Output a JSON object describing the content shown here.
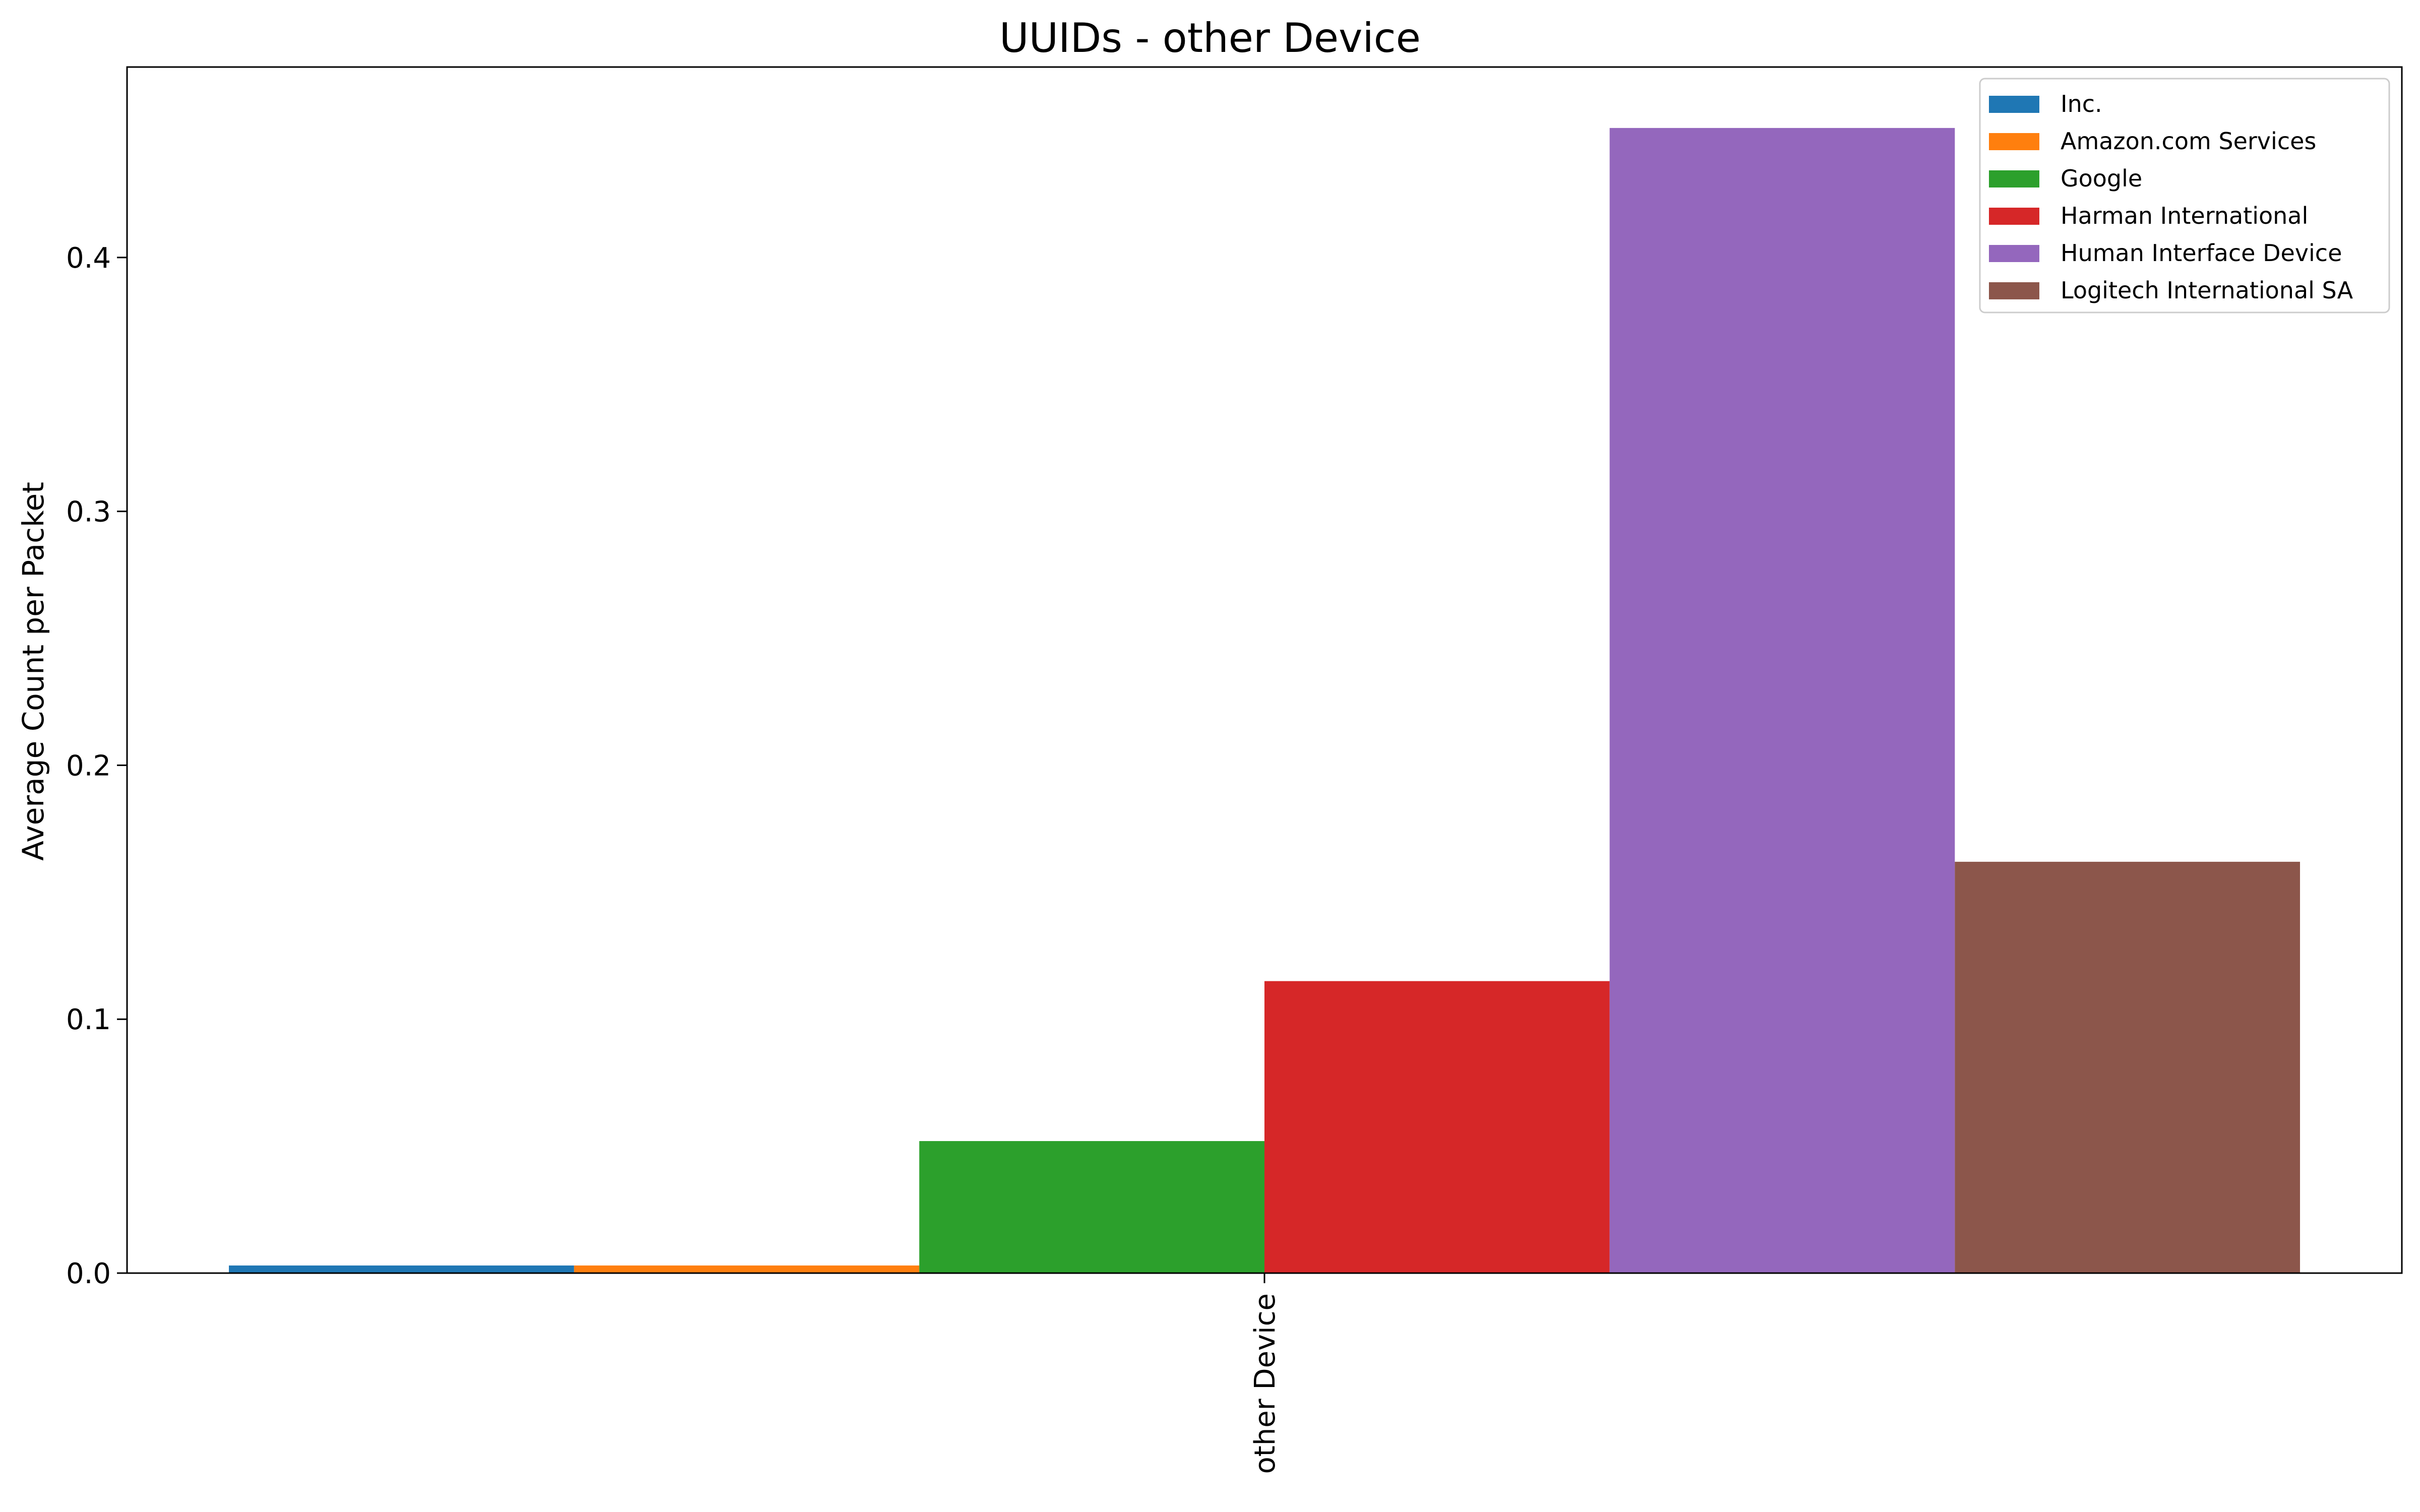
{
  "chart_data": {
    "type": "bar",
    "title": "UUIDs - other Device",
    "xlabel": "",
    "ylabel": "Average Count per Packet",
    "categories": [
      "other Device"
    ],
    "ylim": [
      0,
      0.475
    ],
    "yticks": [
      "0.0",
      "0.1",
      "0.2",
      "0.3",
      "0.4"
    ],
    "ytick_values": [
      0,
      0.1,
      0.2,
      0.3,
      0.4
    ],
    "grid": false,
    "legend_position": "top-right",
    "series": [
      {
        "name": " Inc.",
        "color": "#1f77b4",
        "values": [
          0.003
        ]
      },
      {
        "name": "Amazon.com Services",
        "color": "#ff7f0e",
        "values": [
          0.003
        ]
      },
      {
        "name": "Google",
        "color": "#2ca02c",
        "values": [
          0.052
        ]
      },
      {
        "name": "Harman International",
        "color": "#d62728",
        "values": [
          0.115
        ]
      },
      {
        "name": "Human Interface Device",
        "color": "#9467bd",
        "values": [
          0.451
        ]
      },
      {
        "name": "Logitech International SA",
        "color": "#8c564b",
        "values": [
          0.162
        ]
      }
    ]
  }
}
